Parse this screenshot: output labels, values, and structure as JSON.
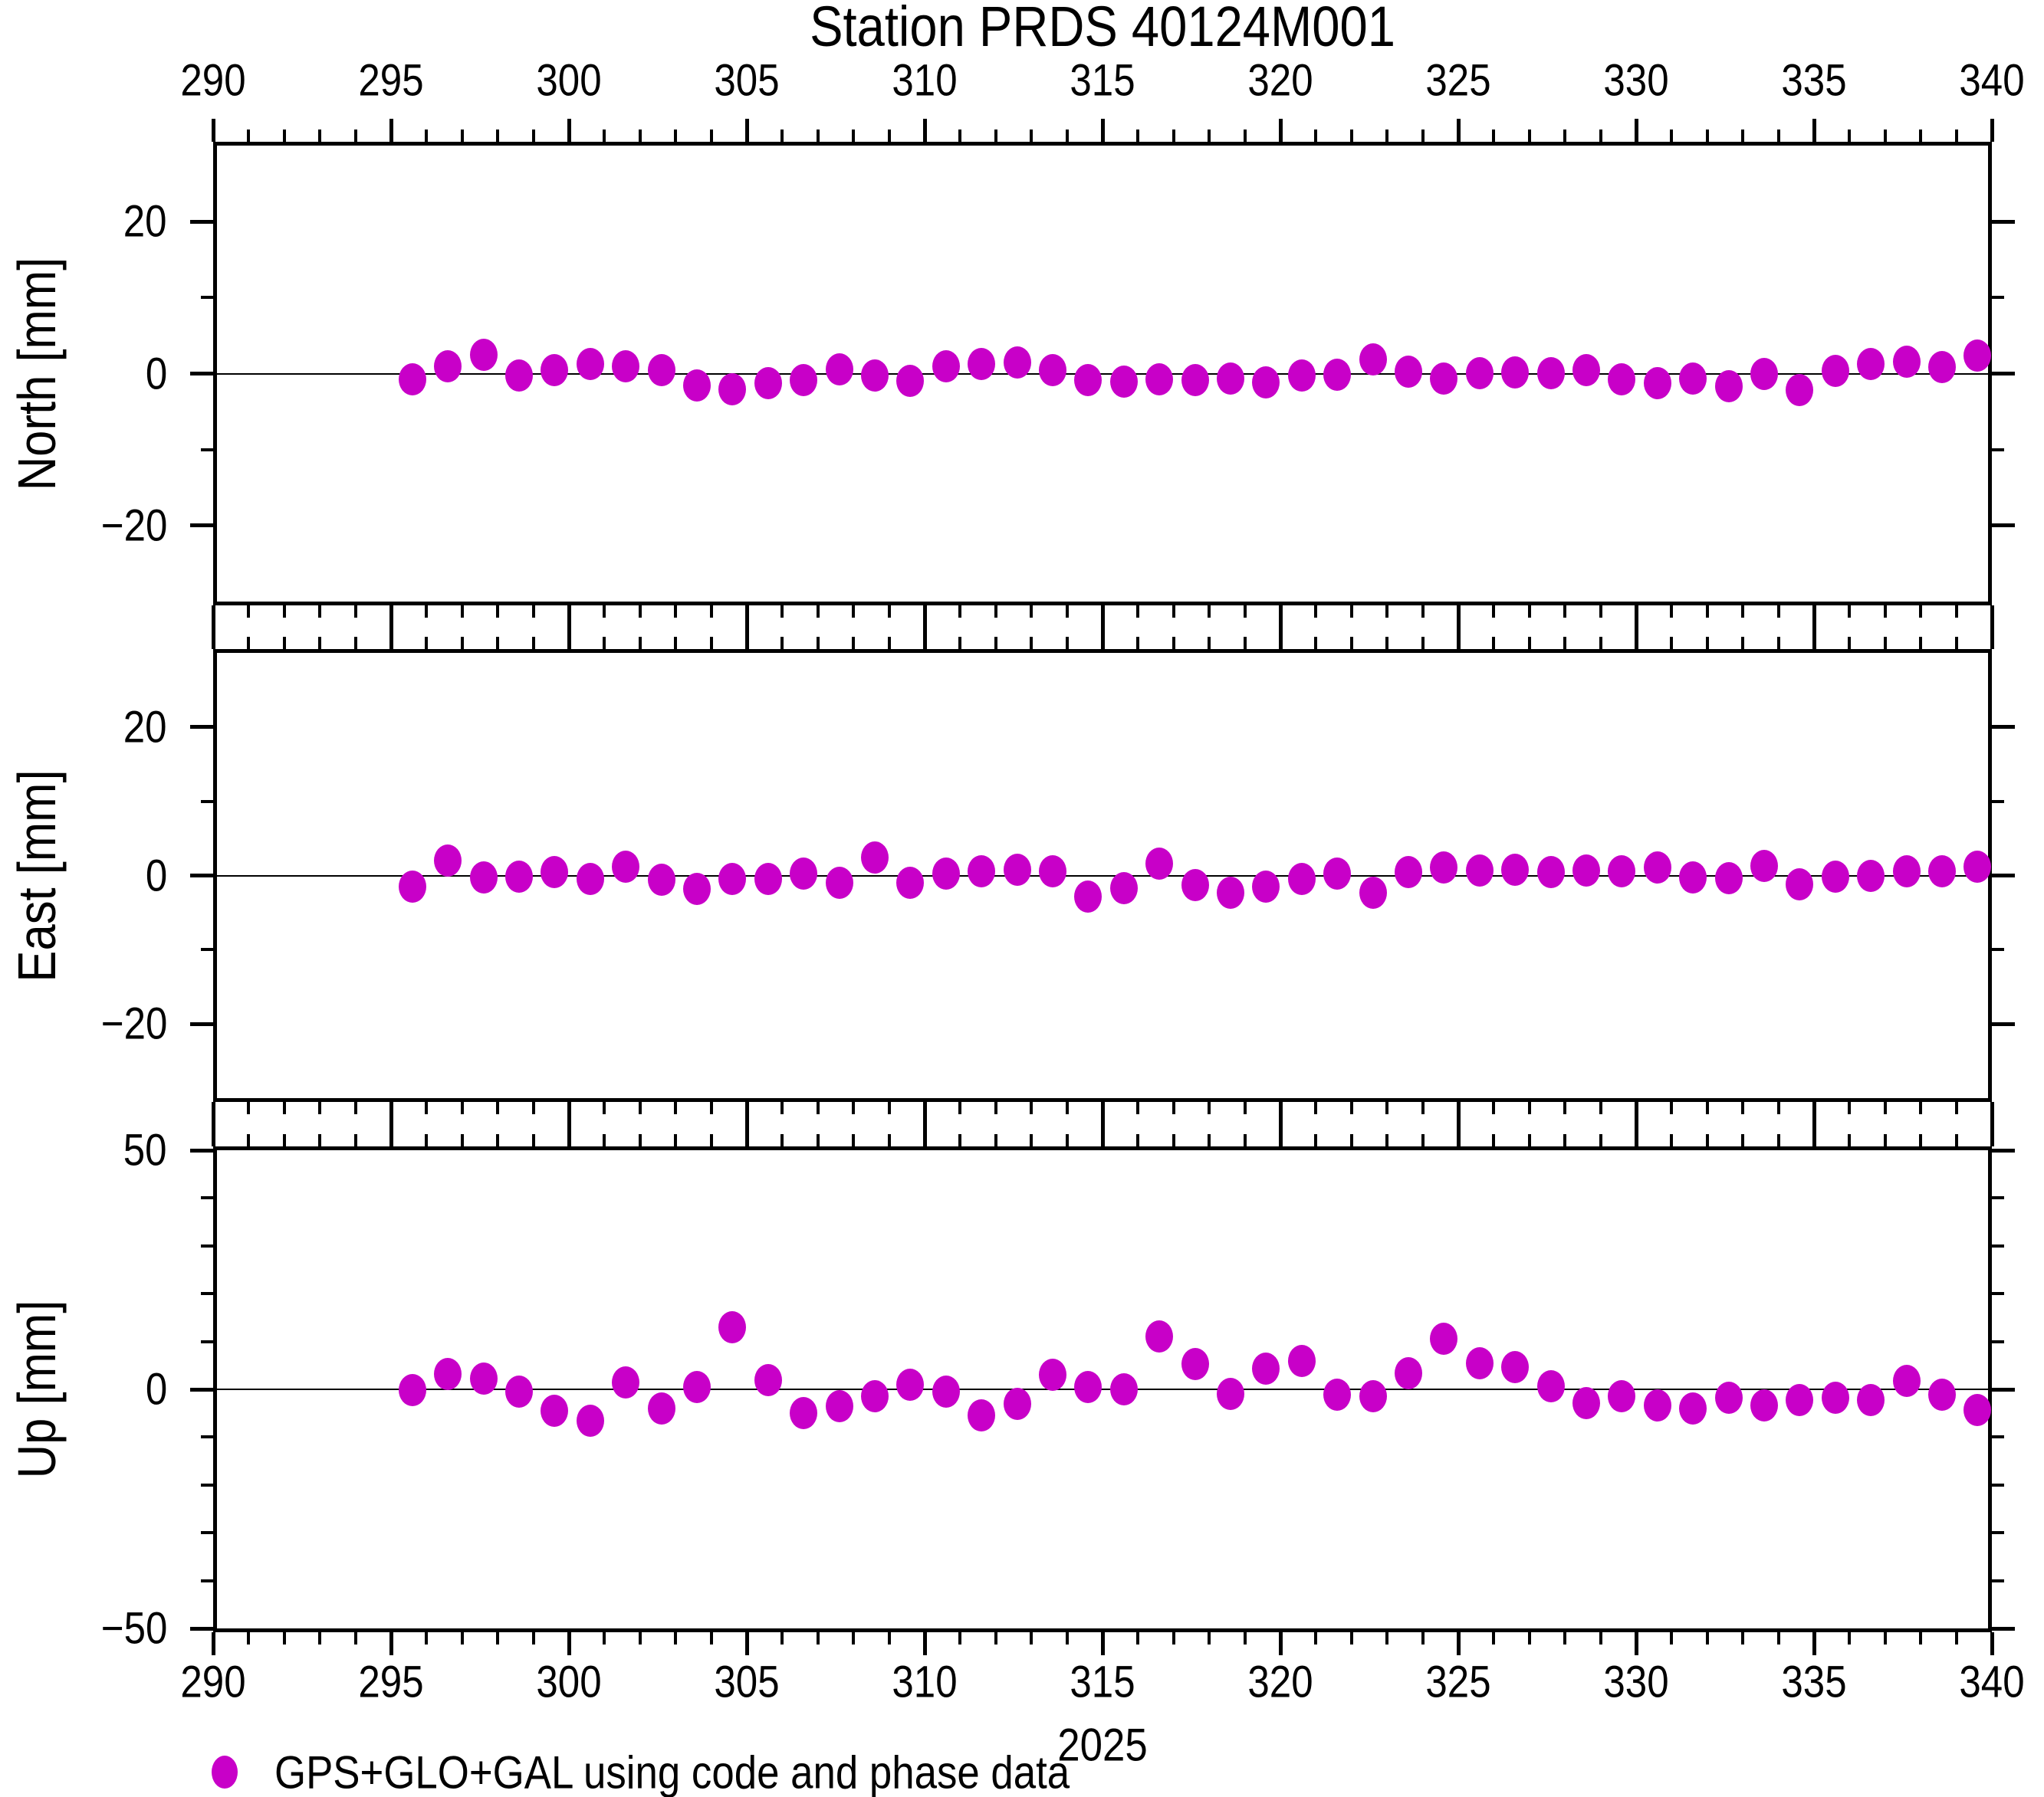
{
  "title": "Station PRDS 40124M001",
  "year_label": "2025",
  "legend": {
    "label": "GPS+GLO+GAL using code and phase data",
    "marker_color": "#C800C8",
    "marker_icon": "filled-ellipse-marker"
  },
  "axis": {
    "x_min": 290,
    "x_max": 340,
    "x_major_step": 5,
    "x_minor_step": 1,
    "x_tick_labels": [
      "290",
      "295",
      "300",
      "305",
      "310",
      "315",
      "320",
      "325",
      "330",
      "335",
      "340"
    ],
    "x_tick_values": [
      290,
      295,
      300,
      305,
      310,
      315,
      320,
      325,
      330,
      335,
      340
    ]
  },
  "chart_data": [
    {
      "type": "scatter",
      "name": "north",
      "ylabel": "North [mm]",
      "ylim": [
        -30,
        30
      ],
      "grid": "zero-line-only",
      "marker_color": "#C800C8",
      "ytick_values": [
        20,
        0,
        -20
      ],
      "ytick_labels": [
        "20",
        "0",
        "−20"
      ],
      "yminor_values": [
        10,
        -10
      ],
      "x": [
        295.6,
        296.6,
        297.6,
        298.6,
        299.6,
        300.6,
        301.6,
        302.6,
        303.6,
        304.6,
        305.6,
        306.6,
        307.6,
        308.6,
        309.6,
        310.6,
        311.6,
        312.6,
        313.6,
        314.6,
        315.6,
        316.6,
        317.6,
        318.6,
        319.6,
        320.6,
        321.6,
        322.6,
        323.6,
        324.6,
        325.6,
        326.6,
        327.6,
        328.6,
        329.6,
        330.6,
        331.6,
        332.6,
        333.6,
        334.6,
        335.6,
        336.6,
        337.6,
        338.6,
        339.6
      ],
      "y": [
        -0.8,
        1.0,
        2.5,
        -0.3,
        0.5,
        1.3,
        1.0,
        0.5,
        -1.6,
        -2.1,
        -1.3,
        -0.9,
        0.6,
        -0.3,
        -1.0,
        1.0,
        1.3,
        1.5,
        0.5,
        -0.9,
        -1.1,
        -0.8,
        -0.9,
        -0.7,
        -1.2,
        -0.3,
        -0.2,
        1.9,
        0.3,
        -0.7,
        0.1,
        0.2,
        0.1,
        0.5,
        -0.8,
        -1.3,
        -0.7,
        -1.7,
        0.0,
        -2.2,
        0.4,
        1.3,
        1.6,
        0.9,
        2.4
      ]
    },
    {
      "type": "scatter",
      "name": "east",
      "ylabel": "East [mm]",
      "ylim": [
        -30,
        30
      ],
      "grid": "zero-line-only",
      "marker_color": "#C800C8",
      "ytick_values": [
        20,
        0,
        -20
      ],
      "ytick_labels": [
        "20",
        "0",
        "−20"
      ],
      "yminor_values": [
        10,
        -10
      ],
      "x": [
        295.6,
        296.6,
        297.6,
        298.6,
        299.6,
        300.6,
        301.6,
        302.6,
        303.6,
        304.6,
        305.6,
        306.6,
        307.6,
        308.6,
        309.6,
        310.6,
        311.6,
        312.6,
        313.6,
        314.6,
        315.6,
        316.6,
        317.6,
        318.6,
        319.6,
        320.6,
        321.6,
        322.6,
        323.6,
        324.6,
        325.6,
        326.6,
        327.6,
        328.6,
        329.6,
        330.6,
        331.6,
        332.6,
        333.6,
        334.6,
        335.6,
        336.6,
        337.6,
        338.6,
        339.6
      ],
      "y": [
        -1.5,
        2.0,
        -0.3,
        -0.2,
        0.5,
        -0.5,
        1.2,
        -0.6,
        -1.8,
        -0.5,
        -0.5,
        0.3,
        -1.0,
        2.4,
        -1.0,
        0.3,
        0.6,
        0.8,
        0.6,
        -2.8,
        -1.7,
        1.6,
        -1.3,
        -2.3,
        -1.5,
        -0.5,
        0.3,
        -2.3,
        0.5,
        1.1,
        0.7,
        0.8,
        0.5,
        0.7,
        0.6,
        1.1,
        -0.3,
        -0.4,
        1.3,
        -1.2,
        -0.2,
        -0.1,
        0.6,
        0.6,
        1.2
      ]
    },
    {
      "type": "scatter",
      "name": "up",
      "ylabel": "Up [mm]",
      "ylim": [
        -50,
        50
      ],
      "grid": "zero-line-only",
      "marker_color": "#C800C8",
      "ytick_values": [
        50,
        0,
        -50
      ],
      "ytick_labels": [
        "50",
        "0",
        "−50"
      ],
      "yminor_values": [
        40,
        30,
        20,
        10,
        -10,
        -20,
        -30,
        -40
      ],
      "x": [
        295.6,
        296.6,
        297.6,
        298.6,
        299.6,
        300.6,
        301.6,
        302.6,
        303.6,
        304.6,
        305.6,
        306.6,
        307.6,
        308.6,
        309.6,
        310.6,
        311.6,
        312.6,
        313.6,
        314.6,
        315.6,
        316.6,
        317.6,
        318.6,
        319.6,
        320.6,
        321.6,
        322.6,
        323.6,
        324.6,
        325.6,
        326.6,
        327.6,
        328.6,
        329.6,
        330.6,
        331.6,
        332.6,
        333.6,
        334.6,
        335.6,
        336.6,
        337.6,
        338.6,
        339.6
      ],
      "y": [
        -0.2,
        3.2,
        2.2,
        -0.5,
        -4.5,
        -6.5,
        1.5,
        -4.0,
        0.5,
        13.0,
        2.0,
        -5.0,
        -3.5,
        -1.5,
        1.0,
        -0.5,
        -5.5,
        -3.0,
        3.0,
        0.5,
        0.0,
        11.0,
        5.3,
        -1.0,
        4.4,
        6.0,
        -1.1,
        -1.5,
        3.3,
        10.5,
        5.5,
        4.7,
        0.7,
        -2.9,
        -1.5,
        -3.3,
        -4.0,
        -1.8,
        -3.3,
        -2.2,
        -1.8,
        -2.2,
        1.8,
        -1.1,
        -4.4
      ]
    }
  ]
}
